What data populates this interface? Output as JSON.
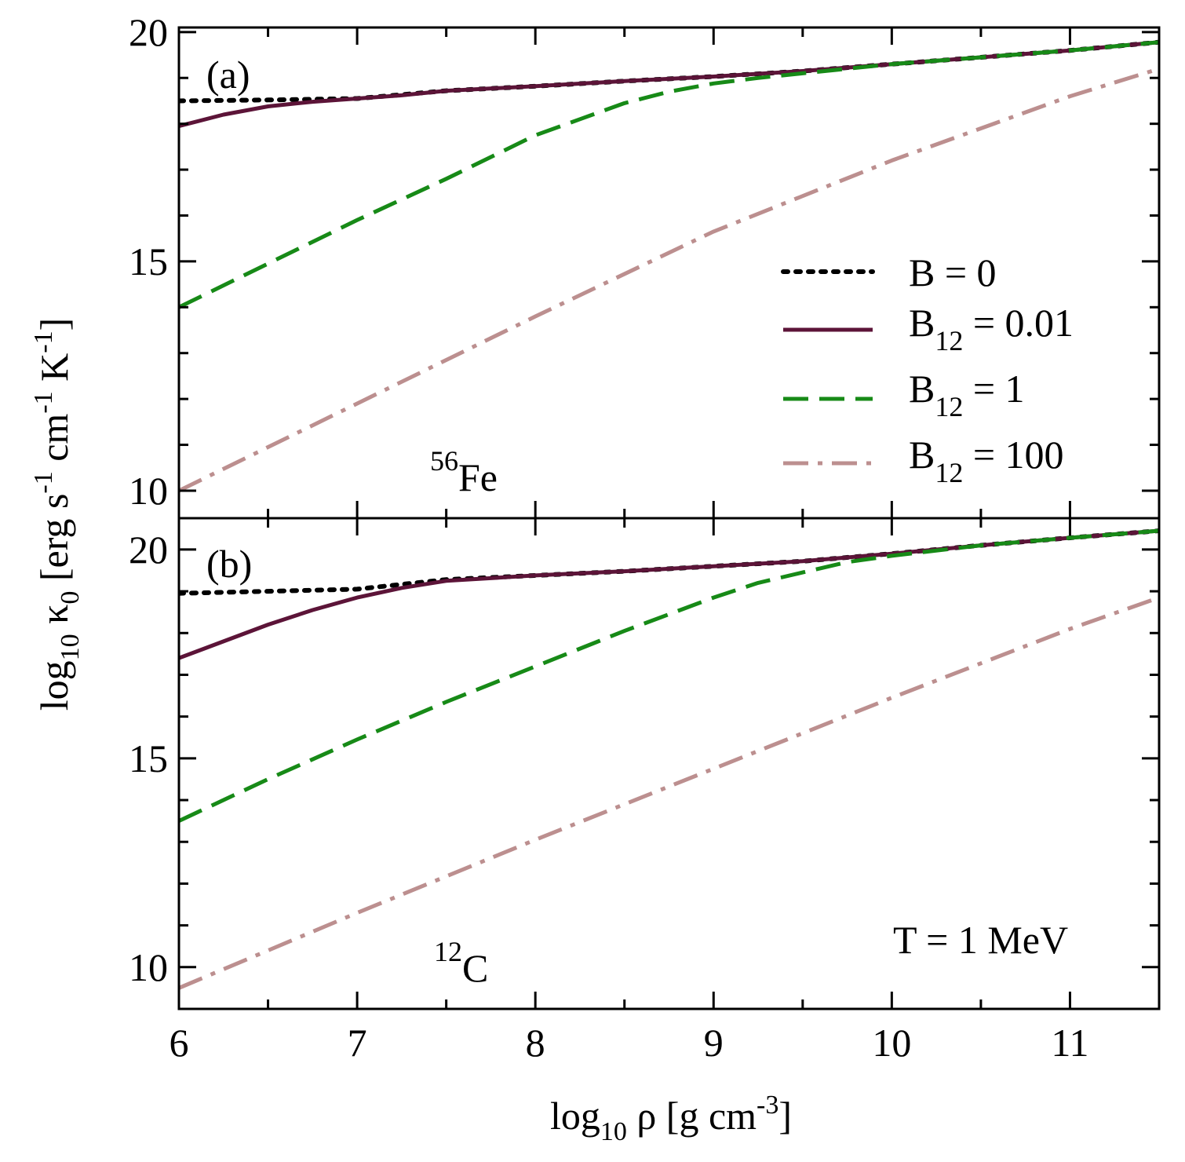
{
  "chart_data": {
    "type": "line",
    "xlabel": {
      "base": "log",
      "sub": "10",
      "mid": " ρ [g cm",
      "sup": "-3",
      "end": "]"
    },
    "ylabel": {
      "base": "log",
      "sub1": "10",
      "mid": " κ",
      "sub2": "0",
      "unit1": " [erg  s",
      "sup1": "-1",
      "unit2": " cm",
      "sup2": "-1",
      "unit3": " K",
      "sup3": "-1",
      "end": "]"
    },
    "xlim": [
      6,
      11.5
    ],
    "x_ticks": [
      "6",
      "7",
      "8",
      "9",
      "10",
      "11"
    ],
    "x_tick_values": [
      6,
      7,
      8,
      9,
      10,
      11
    ],
    "legend": [
      {
        "name": "B = 0",
        "base": "B",
        "sub": "",
        "val": " = 0",
        "color": "#000000",
        "style": "dotted"
      },
      {
        "name": "B12 = 0.01",
        "base": "B",
        "sub": "12",
        "val": " = 0.01",
        "color": "#5c1438",
        "style": "solid"
      },
      {
        "name": "B12 = 1",
        "base": "B",
        "sub": "12",
        "val": " = 1",
        "color": "#178a17",
        "style": "dashed"
      },
      {
        "name": "B12 = 100",
        "base": "B",
        "sub": "12",
        "val": " = 100",
        "color": "#bc8f8f",
        "style": "dashdot"
      }
    ],
    "annotation": "T = 1 MeV",
    "panels": [
      {
        "label": "(a)",
        "element": {
          "mass": "56",
          "symbol": "Fe"
        },
        "ylim": [
          9.4,
          20.1
        ],
        "y_ticks": [
          "10",
          "15",
          "20"
        ],
        "y_tick_values": [
          10,
          15,
          20
        ],
        "series": [
          {
            "name": "B = 0",
            "x": [
              6,
              6.5,
              7,
              7.5,
              8,
              8.5,
              9,
              9.5,
              10,
              10.5,
              11,
              11.5
            ],
            "y": [
              18.5,
              18.52,
              18.55,
              18.72,
              18.82,
              18.93,
              19.03,
              19.15,
              19.3,
              19.45,
              19.6,
              19.78
            ]
          },
          {
            "name": "B12 = 0.01",
            "x": [
              6,
              6.25,
              6.5,
              6.75,
              7,
              7.25,
              7.5,
              8,
              8.5,
              9,
              9.5,
              10,
              10.5,
              11,
              11.5
            ],
            "y": [
              17.95,
              18.2,
              18.38,
              18.48,
              18.55,
              18.62,
              18.72,
              18.82,
              18.93,
              19.03,
              19.15,
              19.3,
              19.45,
              19.6,
              19.78
            ]
          },
          {
            "name": "B12 = 1",
            "x": [
              6,
              6.5,
              7,
              7.5,
              8,
              8.25,
              8.5,
              8.75,
              9,
              9.25,
              9.5,
              10,
              10.5,
              11,
              11.5
            ],
            "y": [
              14.0,
              14.95,
              15.9,
              16.8,
              17.75,
              18.1,
              18.45,
              18.7,
              18.88,
              19.0,
              19.1,
              19.3,
              19.45,
              19.6,
              19.78
            ]
          },
          {
            "name": "B12 = 100",
            "x": [
              6,
              7,
              8,
              9,
              10,
              11,
              11.5
            ],
            "y": [
              10.0,
              11.9,
              13.8,
              15.65,
              17.2,
              18.6,
              19.2
            ]
          }
        ]
      },
      {
        "label": "(b)",
        "element": {
          "mass": "12",
          "symbol": "C"
        },
        "ylim": [
          9.0,
          20.75
        ],
        "y_ticks": [
          "10",
          "15",
          "20"
        ],
        "y_tick_values": [
          10,
          15,
          20
        ],
        "series": [
          {
            "name": "B = 0",
            "x": [
              6,
              6.5,
              7,
              7.5,
              8,
              8.5,
              9,
              9.5,
              10,
              10.5,
              11,
              11.5
            ],
            "y": [
              18.95,
              19.0,
              19.05,
              19.28,
              19.38,
              19.48,
              19.6,
              19.72,
              19.9,
              20.1,
              20.28,
              20.45
            ]
          },
          {
            "name": "B12 = 0.01",
            "x": [
              6,
              6.25,
              6.5,
              6.75,
              7,
              7.25,
              7.5,
              8,
              8.5,
              9,
              9.5,
              10,
              10.5,
              11,
              11.5
            ],
            "y": [
              17.4,
              17.8,
              18.2,
              18.55,
              18.85,
              19.08,
              19.25,
              19.38,
              19.48,
              19.6,
              19.72,
              19.9,
              20.1,
              20.28,
              20.45
            ]
          },
          {
            "name": "B12 = 1",
            "x": [
              6,
              6.5,
              7,
              7.5,
              8,
              8.5,
              9,
              9.25,
              9.5,
              9.75,
              10,
              10.5,
              11,
              11.5
            ],
            "y": [
              13.5,
              14.5,
              15.45,
              16.35,
              17.2,
              18.05,
              18.85,
              19.2,
              19.45,
              19.7,
              19.85,
              20.1,
              20.28,
              20.45
            ]
          },
          {
            "name": "B12 = 100",
            "x": [
              6,
              7,
              8,
              9,
              10,
              11,
              11.5
            ],
            "y": [
              9.5,
              11.3,
              13.05,
              14.75,
              16.45,
              18.1,
              18.85
            ]
          }
        ]
      }
    ]
  }
}
